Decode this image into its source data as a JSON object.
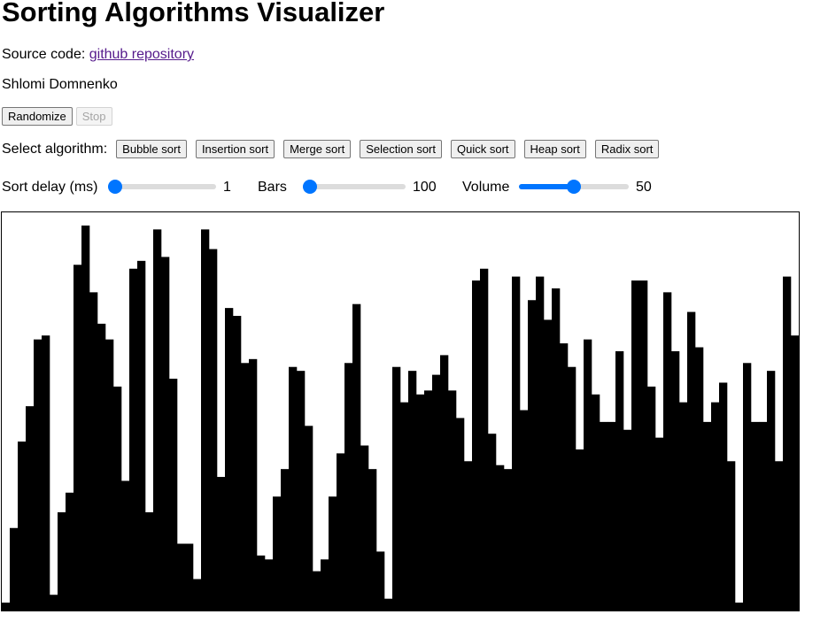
{
  "title": "Sorting Algorithms Visualizer",
  "source": {
    "prefix": "Source code: ",
    "link_text": "github repository"
  },
  "author": "Shlomi Domnenko",
  "controls": {
    "randomize": "Randomize",
    "stop": "Stop"
  },
  "algorithms": {
    "label": "Select algorithm:",
    "items": [
      "Bubble sort",
      "Insertion sort",
      "Merge sort",
      "Selection sort",
      "Quick sort",
      "Heap sort",
      "Radix sort"
    ]
  },
  "sliders": {
    "delay": {
      "label": "Sort delay (ms)",
      "value": "1",
      "fraction": 0.0
    },
    "bars": {
      "label": "Bars",
      "value": "100",
      "fraction": 0.0
    },
    "volume": {
      "label": "Volume",
      "value": "50",
      "fraction": 0.5
    }
  },
  "colors": {
    "bar": "#000000",
    "accent": "#0075ff",
    "link": "#551a8b"
  },
  "bars": {
    "values": [
      2,
      21,
      43,
      52,
      69,
      70,
      4,
      25,
      30,
      88,
      98,
      81,
      73,
      69,
      57,
      33,
      87,
      89,
      25,
      97,
      90,
      59,
      17,
      17,
      8,
      97,
      92,
      34,
      77,
      75,
      63,
      64,
      14,
      13,
      29,
      36,
      62,
      61,
      47,
      10,
      13,
      29,
      40,
      63,
      78,
      42,
      36,
      15,
      3,
      62,
      53,
      61,
      55,
      56,
      60,
      65,
      56,
      49,
      38,
      84,
      87,
      45,
      37,
      36,
      85,
      51,
      79,
      85,
      74,
      82,
      68,
      62,
      41,
      69,
      55,
      48,
      48,
      66,
      46,
      84,
      84,
      57,
      44,
      81,
      66,
      53,
      76,
      67,
      48,
      53,
      58,
      38,
      2,
      63,
      48,
      48,
      61,
      38,
      85,
      70
    ]
  }
}
